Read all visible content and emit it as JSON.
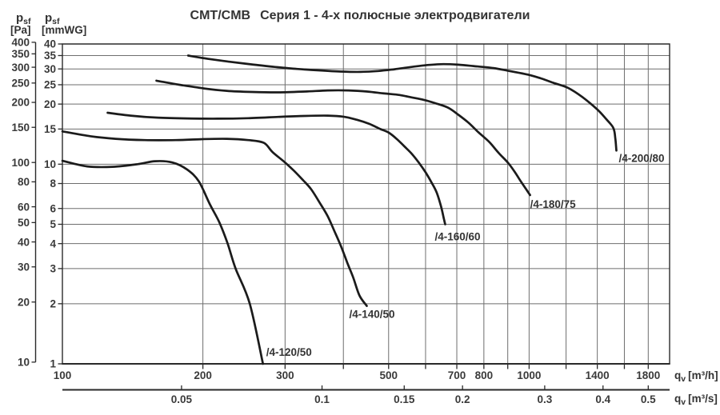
{
  "title": {
    "model": "CMT/CMB",
    "text": "Серия 1 - 4-х полюсные электродвигатели"
  },
  "y_axis_pa": {
    "sym": "p",
    "sub": "sf",
    "unit": "[Pa]",
    "ticks": [
      "400",
      "350",
      "300",
      "250",
      "200",
      "150",
      "100",
      "80",
      "60",
      "50",
      "40",
      "30",
      "20",
      "10"
    ]
  },
  "y_axis_mmwg": {
    "sym": "p",
    "sub": "sf",
    "unit": "[mmWG]",
    "ticks": [
      "40",
      "35",
      "30",
      "25",
      "20",
      "15",
      "10",
      "8",
      "6",
      "5",
      "4",
      "3",
      "2",
      "1"
    ]
  },
  "x_axis_m3h": {
    "sym": "q",
    "sub": "v",
    "unit": "[m³/h]",
    "tick_labels": [
      "100",
      "200",
      "300",
      "500",
      "700",
      "800",
      "1000",
      "1400",
      "1800"
    ],
    "grid_values": [
      200,
      300,
      400,
      500,
      600,
      700,
      800,
      900,
      1000,
      1200,
      1400,
      1600,
      1800
    ],
    "range": [
      100,
      2000
    ]
  },
  "x_axis_m3s": {
    "sym": "q",
    "sub": "v",
    "unit": "[m³/s]",
    "tick_labels": [
      "0.05",
      "0.1",
      "0.15",
      "0.2",
      "0.3",
      "0.4",
      "0.5"
    ]
  },
  "chart_data": {
    "type": "line",
    "title": "CMT/CMB Серия 1 - 4-х полюсные электродвигатели",
    "xlabel": "qv [m³/h] (log scale, 100–2000); second axis qv [m³/s] (0.05–0.5)",
    "ylabel": "psf [Pa] 10–400 / psf [mmWG] 1–40 (log scale)",
    "x_scale": "log",
    "y_scale": "log",
    "x_range_m3h": [
      100,
      2000
    ],
    "y_range_mmwg": [
      1,
      40
    ],
    "y_gridlines_mmwg": [
      2,
      3,
      4,
      5,
      6,
      8,
      10,
      15,
      20,
      25,
      30,
      35
    ],
    "grid": true,
    "series": [
      {
        "name": "/4-120/50",
        "points_q_p": [
          [
            100,
            10.4
          ],
          [
            113,
            9.75
          ],
          [
            128,
            9.7
          ],
          [
            145,
            10.0
          ],
          [
            158,
            10.35
          ],
          [
            172,
            10.2
          ],
          [
            185,
            9.4
          ],
          [
            196,
            8.2
          ],
          [
            207,
            6.3
          ],
          [
            217,
            5.1
          ],
          [
            226,
            4.0
          ],
          [
            235,
            3.0
          ],
          [
            252,
            2.0
          ],
          [
            269,
            1.0
          ]
        ]
      },
      {
        "name": "/4-140/50",
        "points_q_p": [
          [
            100,
            14.6
          ],
          [
            115,
            13.8
          ],
          [
            130,
            13.4
          ],
          [
            150,
            13.2
          ],
          [
            175,
            13.2
          ],
          [
            200,
            13.35
          ],
          [
            225,
            13.4
          ],
          [
            250,
            13.2
          ],
          [
            270,
            12.8
          ],
          [
            282,
            11.5
          ],
          [
            300,
            10.2
          ],
          [
            313,
            9.3
          ],
          [
            328,
            8.3
          ],
          [
            341,
            7.5
          ],
          [
            356,
            6.4
          ],
          [
            370,
            5.5
          ],
          [
            383,
            4.6
          ],
          [
            395,
            3.9
          ],
          [
            408,
            3.2
          ],
          [
            420,
            2.7
          ],
          [
            433,
            2.2
          ],
          [
            449,
            1.95
          ]
        ]
      },
      {
        "name": "/4-160/60",
        "points_q_p": [
          [
            125,
            18.1
          ],
          [
            140,
            17.5
          ],
          [
            160,
            17.1
          ],
          [
            185,
            16.95
          ],
          [
            215,
            16.9
          ],
          [
            250,
            17.0
          ],
          [
            290,
            17.25
          ],
          [
            330,
            17.45
          ],
          [
            370,
            17.5
          ],
          [
            400,
            17.3
          ],
          [
            427,
            16.7
          ],
          [
            455,
            15.9
          ],
          [
            480,
            15.0
          ],
          [
            500,
            14.4
          ],
          [
            520,
            13.4
          ],
          [
            540,
            12.3
          ],
          [
            560,
            11.3
          ],
          [
            580,
            10.2
          ],
          [
            600,
            9.1
          ],
          [
            618,
            8.1
          ],
          [
            634,
            7.2
          ],
          [
            648,
            6.1
          ],
          [
            657,
            5.3
          ],
          [
            661,
            5.0
          ]
        ]
      },
      {
        "name": "/4-180/75",
        "points_q_p": [
          [
            159,
            26.2
          ],
          [
            178,
            25.0
          ],
          [
            200,
            24.0
          ],
          [
            225,
            23.3
          ],
          [
            255,
            23.0
          ],
          [
            290,
            22.9
          ],
          [
            330,
            23.1
          ],
          [
            370,
            23.4
          ],
          [
            410,
            23.4
          ],
          [
            450,
            23.1
          ],
          [
            490,
            22.6
          ],
          [
            528,
            22.2
          ],
          [
            560,
            21.6
          ],
          [
            595,
            21.0
          ],
          [
            630,
            20.2
          ],
          [
            670,
            19.2
          ],
          [
            705,
            17.7
          ],
          [
            740,
            16.2
          ],
          [
            780,
            14.4
          ],
          [
            822,
            12.9
          ],
          [
            860,
            11.4
          ],
          [
            900,
            10.2
          ],
          [
            930,
            9.2
          ],
          [
            960,
            8.2
          ],
          [
            985,
            7.5
          ],
          [
            1005,
            7.0
          ]
        ]
      },
      {
        "name": "/4-200/80",
        "points_q_p": [
          [
            186,
            35.0
          ],
          [
            205,
            33.7
          ],
          [
            228,
            32.6
          ],
          [
            255,
            31.6
          ],
          [
            285,
            30.7
          ],
          [
            318,
            30.0
          ],
          [
            355,
            29.5
          ],
          [
            395,
            29.1
          ],
          [
            435,
            29.0
          ],
          [
            475,
            29.3
          ],
          [
            515,
            29.9
          ],
          [
            560,
            30.7
          ],
          [
            610,
            31.4
          ],
          [
            655,
            31.7
          ],
          [
            705,
            31.5
          ],
          [
            760,
            31.0
          ],
          [
            838,
            30.3
          ],
          [
            900,
            29.4
          ],
          [
            994,
            28.1
          ],
          [
            1060,
            26.9
          ],
          [
            1130,
            25.5
          ],
          [
            1212,
            24.1
          ],
          [
            1300,
            21.7
          ],
          [
            1400,
            18.8
          ],
          [
            1460,
            16.9
          ],
          [
            1515,
            15.2
          ],
          [
            1530,
            13.5
          ],
          [
            1538,
            11.7
          ]
        ]
      }
    ],
    "legend_position": "labels-at-curve-ends"
  },
  "colors": {
    "curve": "#1b1b1b",
    "grid": "#6e6e6e",
    "border": "#2a2a2a",
    "text": "#3a3a3a",
    "background": "#ffffff"
  }
}
